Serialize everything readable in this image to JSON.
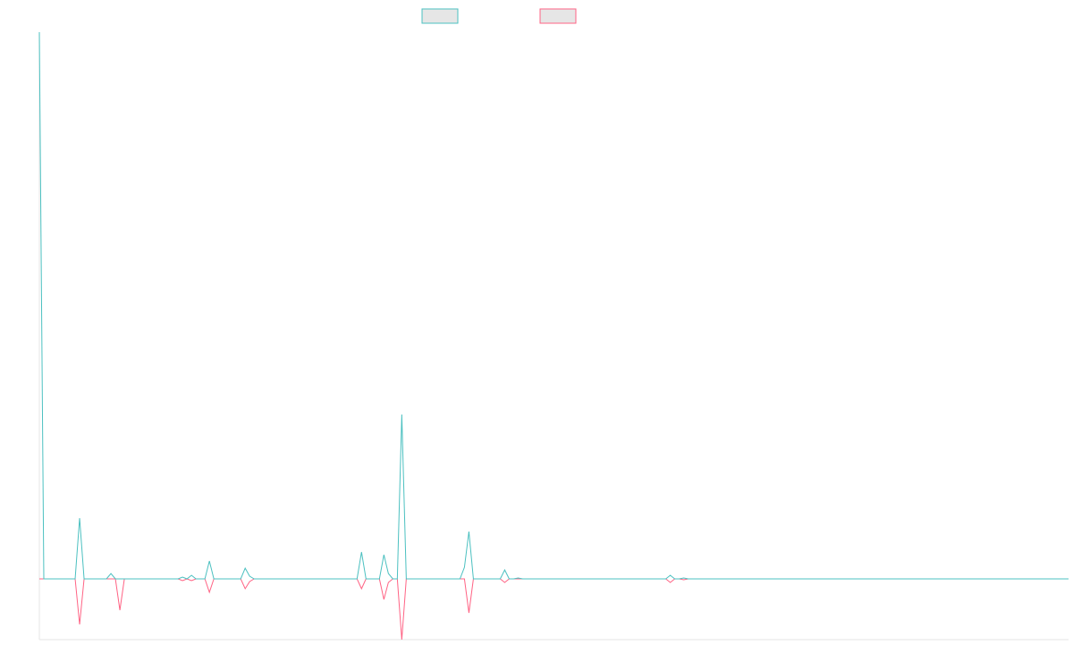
{
  "chart_data": {
    "type": "line",
    "x": [
      0,
      1,
      8,
      9,
      10,
      15,
      16,
      17,
      18,
      19,
      31,
      32,
      33,
      34,
      35,
      37,
      38,
      39,
      45,
      46,
      47,
      48,
      71,
      72,
      73,
      76,
      77,
      78,
      79,
      80,
      81,
      82,
      94,
      95,
      96,
      97,
      103,
      104,
      105,
      106,
      107,
      108,
      140,
      141,
      142,
      143,
      144,
      145,
      230
    ],
    "series": [
      {
        "color": "#ff6384",
        "values": [
          0,
          0,
          0,
          -51,
          0,
          0,
          0,
          0,
          -35,
          0,
          0,
          -2,
          0,
          -2,
          0,
          0,
          -15,
          0,
          0,
          -11,
          -3,
          0,
          0,
          -11,
          0,
          0,
          -23,
          -4,
          0,
          0,
          -68,
          0,
          0,
          0,
          -38,
          0,
          0,
          -4,
          0,
          0,
          0,
          0,
          0,
          -4,
          0,
          0,
          -1,
          0,
          0
        ]
      },
      {
        "color": "#4bc0c0",
        "values": [
          612,
          0,
          0,
          68,
          0,
          0,
          6,
          0,
          0,
          0,
          0,
          2,
          0,
          4,
          0,
          0,
          20,
          0,
          0,
          12,
          3,
          0,
          0,
          30,
          0,
          0,
          27,
          6,
          0,
          0,
          184,
          0,
          0,
          13,
          53,
          0,
          0,
          10,
          0,
          0,
          1,
          0,
          0,
          4,
          0,
          0,
          1,
          0,
          0
        ]
      }
    ],
    "xlim": [
      0,
      230
    ],
    "ylim": [
      -68,
      612
    ]
  }
}
